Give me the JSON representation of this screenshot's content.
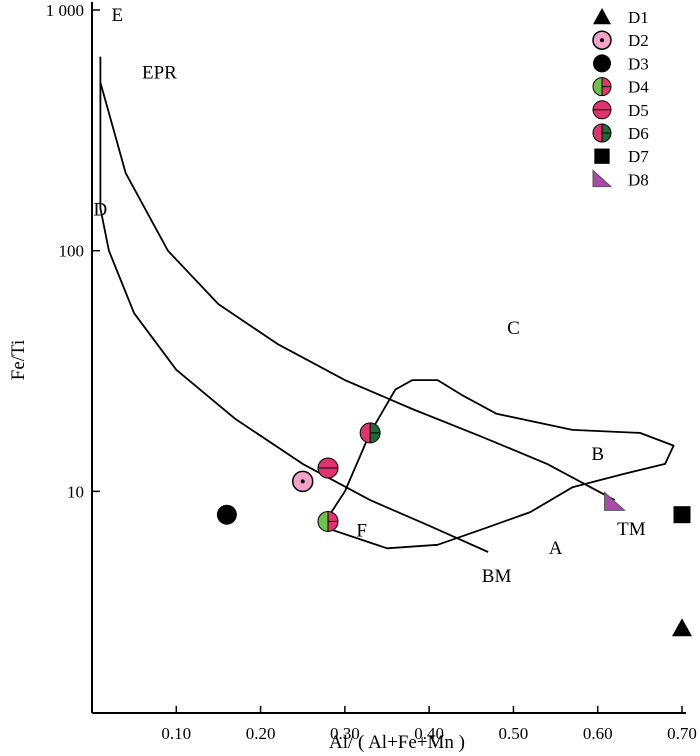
{
  "chart_data": {
    "type": "scatter",
    "xlabel": "Al/ ( Al+Fe+Mn )",
    "ylabel": "Fe/Ti",
    "xlim": [
      0,
      0.7
    ],
    "ylim": [
      1.2,
      1000
    ],
    "yscale": "log",
    "x_ticks": [
      {
        "value": 0.1,
        "label": "0.10"
      },
      {
        "value": 0.2,
        "label": "0.20"
      },
      {
        "value": 0.3,
        "label": "0.30"
      },
      {
        "value": 0.4,
        "label": "0.40"
      },
      {
        "value": 0.5,
        "label": "0.50"
      },
      {
        "value": 0.6,
        "label": "0.60"
      },
      {
        "value": 0.7,
        "label": "0.70"
      }
    ],
    "y_ticks": [
      {
        "value": 10,
        "label": "10"
      },
      {
        "value": 100,
        "label": "100"
      },
      {
        "value": 1000,
        "label": "1 000"
      }
    ],
    "grid": false,
    "legend_position": "top-right",
    "series": [
      {
        "name": "D1",
        "marker": "triangle",
        "color": "#000000",
        "x": 0.7,
        "y": 2.7
      },
      {
        "name": "D2",
        "marker": "circle-dot",
        "color": "#f4a3c8",
        "x": 0.25,
        "y": 11
      },
      {
        "name": "D3",
        "marker": "circle",
        "color": "#000000",
        "x": 0.16,
        "y": 8
      },
      {
        "name": "D4",
        "marker": "circle-split-green-pink",
        "color": "#6cc24a",
        "x": 0.28,
        "y": 7.5
      },
      {
        "name": "D5",
        "marker": "circle-pink-line",
        "color": "#e0336f",
        "x": 0.28,
        "y": 12.5
      },
      {
        "name": "D6",
        "marker": "circle-split-pink-darkgreen",
        "color": "#1e6b3a",
        "x": 0.33,
        "y": 17.5
      },
      {
        "name": "D7",
        "marker": "square",
        "color": "#000000",
        "x": 0.7,
        "y": 8
      },
      {
        "name": "D8",
        "marker": "right-triangle",
        "color": "#a64ca6",
        "x": 0.62,
        "y": 9
      }
    ],
    "curves": [
      {
        "id": "EPR-to-TM",
        "points": [
          [
            0.01,
            500
          ],
          [
            0.04,
            210
          ],
          [
            0.09,
            100
          ],
          [
            0.15,
            60
          ],
          [
            0.22,
            41
          ],
          [
            0.3,
            29
          ],
          [
            0.38,
            22
          ],
          [
            0.46,
            17
          ],
          [
            0.54,
            13
          ],
          [
            0.62,
            9.2
          ]
        ]
      },
      {
        "id": "D-to-BM",
        "points": [
          [
            0.01,
            640
          ],
          [
            0.01,
            150
          ],
          [
            0.02,
            100
          ],
          [
            0.05,
            55
          ],
          [
            0.1,
            32
          ],
          [
            0.17,
            20
          ],
          [
            0.25,
            13
          ],
          [
            0.33,
            9.2
          ],
          [
            0.4,
            7.2
          ],
          [
            0.47,
            5.6
          ]
        ]
      },
      {
        "id": "F-to-C-loop",
        "points": [
          [
            0.27,
            7.2
          ],
          [
            0.35,
            5.8
          ],
          [
            0.41,
            6.0
          ],
          [
            0.47,
            7.1
          ],
          [
            0.52,
            8.2
          ],
          [
            0.57,
            10.4
          ],
          [
            0.63,
            11.8
          ],
          [
            0.68,
            13.0
          ],
          [
            0.69,
            15.5
          ],
          [
            0.65,
            17.5
          ],
          [
            0.57,
            18.0
          ],
          [
            0.48,
            21.0
          ],
          [
            0.44,
            25.0
          ],
          [
            0.41,
            29.0
          ],
          [
            0.38,
            29.0
          ],
          [
            0.36,
            26.5
          ],
          [
            0.33,
            17.5
          ],
          [
            0.3,
            10.0
          ],
          [
            0.28,
            7.8
          ],
          [
            0.27,
            7.2
          ]
        ]
      }
    ],
    "region_labels": [
      {
        "text": "E",
        "x": 0.03,
        "y": 900
      },
      {
        "text": "EPR",
        "x": 0.08,
        "y": 520
      },
      {
        "text": "D",
        "x": 0.01,
        "y": 140
      },
      {
        "text": "C",
        "x": 0.5,
        "y": 45
      },
      {
        "text": "B",
        "x": 0.6,
        "y": 13.5
      },
      {
        "text": "F",
        "x": 0.32,
        "y": 6.5
      },
      {
        "text": "A",
        "x": 0.55,
        "y": 5.5
      },
      {
        "text": "TM",
        "x": 0.64,
        "y": 6.6
      },
      {
        "text": "BM",
        "x": 0.48,
        "y": 4.2
      }
    ]
  }
}
